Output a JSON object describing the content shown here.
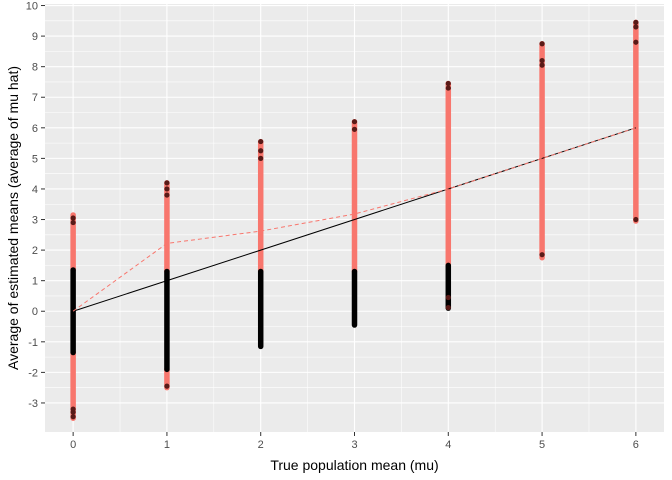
{
  "chart_data": {
    "type": "scatter",
    "title": "",
    "xlabel": "True population mean (mu)",
    "ylabel": "Average of estimated means (average of mu hat)",
    "xlim": [
      -0.3,
      6.3
    ],
    "ylim": [
      -3.95,
      10.05
    ],
    "x_ticks": [
      0,
      1,
      2,
      3,
      4,
      5,
      6
    ],
    "y_ticks": [
      -3,
      -2,
      -1,
      0,
      1,
      2,
      3,
      4,
      5,
      6,
      7,
      8,
      9,
      10
    ],
    "grid": true,
    "legend": "none",
    "colors": {
      "panel_background": "#ebebeb",
      "grid": "#ffffff",
      "rejected_points": "#f8766d",
      "not_rejected_points": "#000000",
      "outline": "#5a1a17",
      "reference_line": "#000000",
      "rejected_mean_line": "#f8766d"
    },
    "series": [
      {
        "values": [
          {
            "x": 0,
            "ymin": -3.5,
            "ymax": -1.35
          },
          {
            "x": 0,
            "ymin": 1.35,
            "ymax": 3.15
          },
          {
            "x": 1,
            "ymin": -2.5,
            "ymax": -1.9
          },
          {
            "x": 1,
            "ymin": 1.3,
            "ymax": 4.2
          },
          {
            "x": 2,
            "ymin": 1.3,
            "ymax": 5.55
          },
          {
            "x": 3,
            "ymin": 1.3,
            "ymax": 6.2
          },
          {
            "x": 4,
            "ymin": 1.5,
            "ymax": 7.45
          },
          {
            "x": 5,
            "ymin": 1.75,
            "ymax": 8.75
          },
          {
            "x": 6,
            "ymin": 2.95,
            "ymax": 9.45
          }
        ]
      },
      {
        "values": [
          {
            "x": 0,
            "ymin": -1.35,
            "ymax": 1.35
          },
          {
            "x": 1,
            "ymin": -1.9,
            "ymax": 1.3
          },
          {
            "x": 2,
            "ymin": -1.15,
            "ymax": 1.3
          },
          {
            "x": 3,
            "ymin": -0.45,
            "ymax": 1.3
          },
          {
            "x": 4,
            "ymin": 0.1,
            "ymax": 1.5
          }
        ]
      }
    ],
    "outliers": [
      {
        "x": 0,
        "y": -3.45
      },
      {
        "x": 0,
        "y": -3.3
      },
      {
        "x": 0,
        "y": -3.2
      },
      {
        "x": 0,
        "y": 3.05
      },
      {
        "x": 0,
        "y": 2.9
      },
      {
        "x": 1,
        "y": -2.45
      },
      {
        "x": 1,
        "y": 4.2
      },
      {
        "x": 1,
        "y": 4.0
      },
      {
        "x": 1,
        "y": 3.8
      },
      {
        "x": 2,
        "y": 5.55
      },
      {
        "x": 2,
        "y": 5.25
      },
      {
        "x": 2,
        "y": 5.0
      },
      {
        "x": 3,
        "y": 6.2
      },
      {
        "x": 3,
        "y": 5.95
      },
      {
        "x": 4,
        "y": 7.45
      },
      {
        "x": 4,
        "y": 7.3
      },
      {
        "x": 4,
        "y": 0.45
      },
      {
        "x": 4,
        "y": 0.12
      },
      {
        "x": 5,
        "y": 8.75
      },
      {
        "x": 5,
        "y": 8.2
      },
      {
        "x": 5,
        "y": 8.05
      },
      {
        "x": 5,
        "y": 1.85
      },
      {
        "x": 6,
        "y": 9.45
      },
      {
        "x": 6,
        "y": 9.3
      },
      {
        "x": 6,
        "y": 8.8
      },
      {
        "x": 6,
        "y": 3.0
      }
    ],
    "reference_line": [
      {
        "x": 0,
        "y": 0
      },
      {
        "x": 6,
        "y": 6
      }
    ],
    "rejected_mean_line": [
      {
        "x": 0,
        "y": 0.0
      },
      {
        "x": 1,
        "y": 2.22
      },
      {
        "x": 2,
        "y": 2.62
      },
      {
        "x": 3,
        "y": 3.18
      },
      {
        "x": 4,
        "y": 4.0
      },
      {
        "x": 5,
        "y": 5.0
      },
      {
        "x": 6,
        "y": 6.0
      }
    ]
  }
}
